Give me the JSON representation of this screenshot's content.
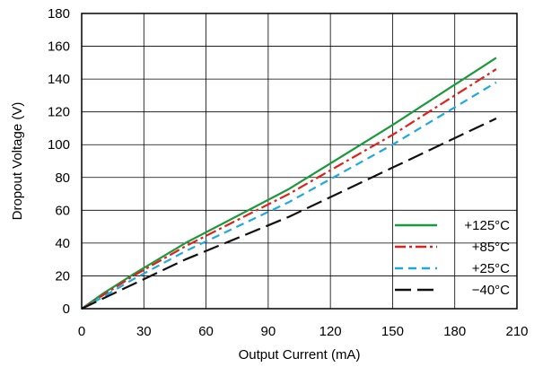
{
  "chart_data": {
    "type": "line",
    "title": "",
    "xlabel": "Output Current (mA)",
    "ylabel": "Dropout Voltage (V)",
    "xlim": [
      0,
      210
    ],
    "ylim": [
      0,
      180
    ],
    "xticks": [
      0,
      30,
      60,
      90,
      120,
      150,
      180,
      210
    ],
    "yticks": [
      0,
      20,
      40,
      60,
      80,
      100,
      120,
      140,
      160,
      180
    ],
    "grid": true,
    "legend_position": "bottom-right",
    "series": [
      {
        "name": "+125°C",
        "color": "#1a9a3c",
        "dash": "solid",
        "x": [
          0,
          10,
          25,
          50,
          100,
          150,
          200
        ],
        "y": [
          0,
          9,
          21,
          40,
          73,
          112,
          153
        ]
      },
      {
        "name": "+85°C",
        "color": "#e0201b",
        "dash": "dashdot",
        "x": [
          0,
          10,
          25,
          50,
          100,
          150,
          200
        ],
        "y": [
          0,
          8,
          20,
          38,
          70,
          106,
          146
        ]
      },
      {
        "name": "+25°C",
        "color": "#1ea8e0",
        "dash": "dashed",
        "x": [
          0,
          10,
          25,
          50,
          100,
          150,
          200
        ],
        "y": [
          0,
          7,
          18,
          35,
          65,
          100,
          138
        ]
      },
      {
        "name": "−40°C",
        "color": "#111111",
        "dash": "longdash",
        "x": [
          0,
          10,
          25,
          50,
          100,
          150,
          200
        ],
        "y": [
          0,
          6,
          15,
          30,
          56,
          86,
          116
        ]
      }
    ]
  }
}
